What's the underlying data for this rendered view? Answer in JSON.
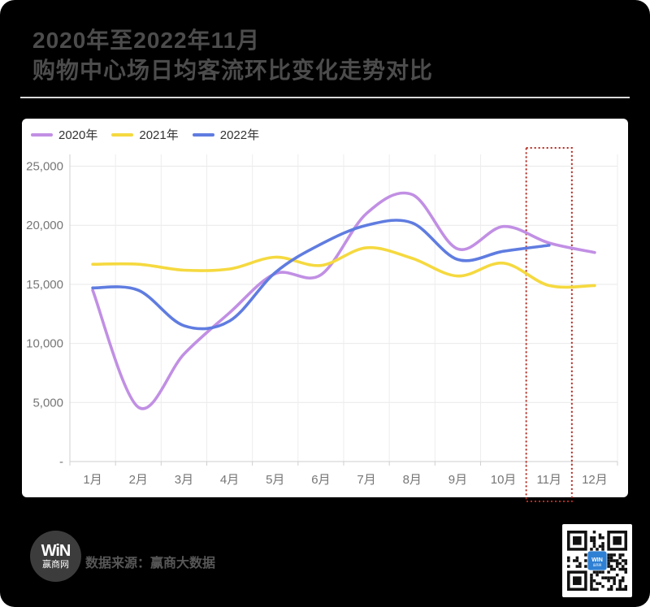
{
  "header": {
    "title_line1": "2020年至2022年11月",
    "title_line2": "购物中心场日均客流环比变化走势对比"
  },
  "chart_data": {
    "type": "line",
    "title": "2020年至2022年11月购物中心场日均客流环比变化走势对比",
    "categories": [
      "1月",
      "2月",
      "3月",
      "4月",
      "5月",
      "6月",
      "7月",
      "8月",
      "9月",
      "10月",
      "11月",
      "12月"
    ],
    "series": [
      {
        "name": "2020年",
        "color": "#c18fe4",
        "values": [
          14500,
          4600,
          9100,
          12600,
          15900,
          15800,
          21000,
          22600,
          18000,
          19900,
          18500,
          17700
        ]
      },
      {
        "name": "2021年",
        "color": "#f5d93f",
        "values": [
          16700,
          16700,
          16200,
          16300,
          17300,
          16600,
          18100,
          17200,
          15700,
          16800,
          14900,
          14900
        ]
      },
      {
        "name": "2022年",
        "color": "#5f7ce0",
        "values": [
          14700,
          14500,
          11500,
          11900,
          16000,
          18400,
          20000,
          20200,
          17100,
          17800,
          18300,
          null
        ]
      }
    ],
    "y_ticks": [
      {
        "v": 25000,
        "label": "25,000"
      },
      {
        "v": 20000,
        "label": "20,000"
      },
      {
        "v": 15000,
        "label": "15,000"
      },
      {
        "v": 10000,
        "label": "10,000"
      },
      {
        "v": 5000,
        "label": "5,000"
      },
      {
        "v": 0,
        "label": "-"
      }
    ],
    "ylim": [
      0,
      26000
    ],
    "grid": true,
    "legend_position": "top-left",
    "highlight_region": {
      "category": "11月",
      "style": "red-dotted-box",
      "color": "#b5291f"
    }
  },
  "footer": {
    "logo_text_top": "WiN",
    "logo_text_bottom": "赢商网",
    "source_text": "数据来源：赢商大数据",
    "qr_center_text": "WIN",
    "qr_center_subtext": "赢商网",
    "qr_logo_color": "#2e80d4"
  }
}
